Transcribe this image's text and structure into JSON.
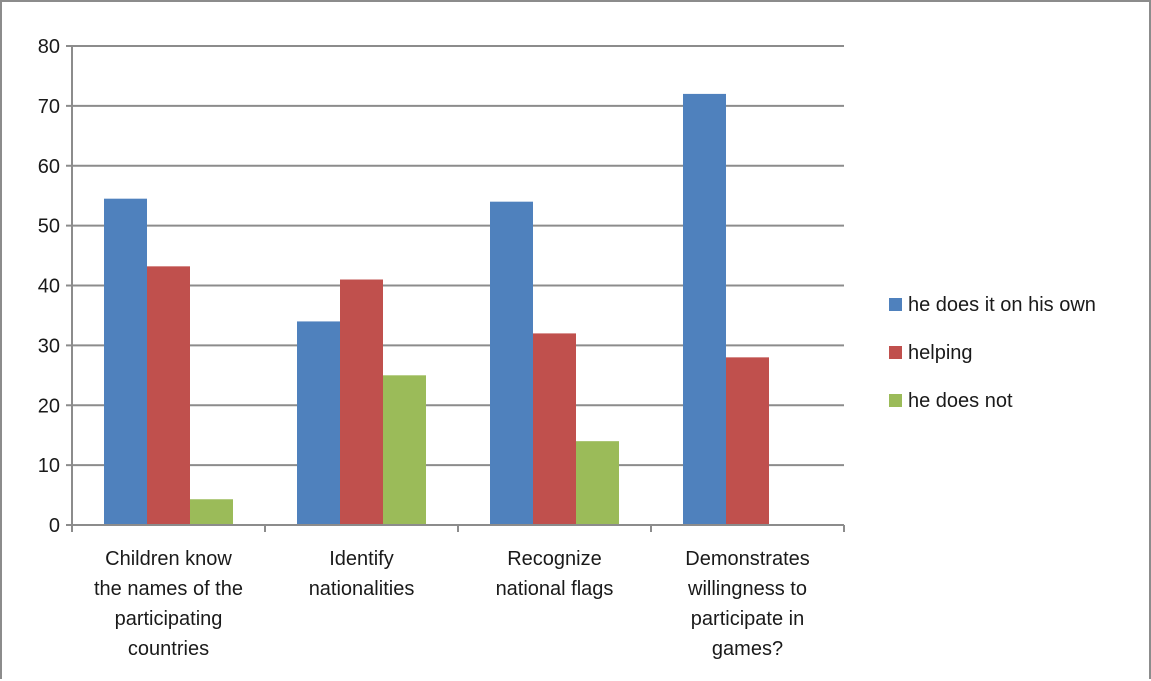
{
  "chart_data": {
    "type": "bar",
    "title": "",
    "xlabel": "",
    "ylabel": "",
    "categories": [
      [
        "Children know",
        "the names of the",
        "participating",
        "countries"
      ],
      [
        "Identify",
        "nationalities"
      ],
      [
        "Recognize",
        "national flags"
      ],
      [
        "Demonstrates",
        "willingness to",
        "participate in",
        "games?"
      ]
    ],
    "series": [
      {
        "name": "he does it on his own",
        "color": "#4F81BD",
        "values": [
          54.5,
          34,
          54,
          72
        ]
      },
      {
        "name": "helping",
        "color": "#C0504D",
        "values": [
          43.2,
          41,
          32,
          28
        ]
      },
      {
        "name": "he does not",
        "color": "#9BBB59",
        "values": [
          4.3,
          25,
          14,
          0
        ]
      }
    ],
    "ylim": [
      0,
      80
    ],
    "yticks": [
      0,
      10,
      20,
      30,
      40,
      50,
      60,
      70,
      80
    ],
    "grid": true,
    "legend": "right"
  }
}
